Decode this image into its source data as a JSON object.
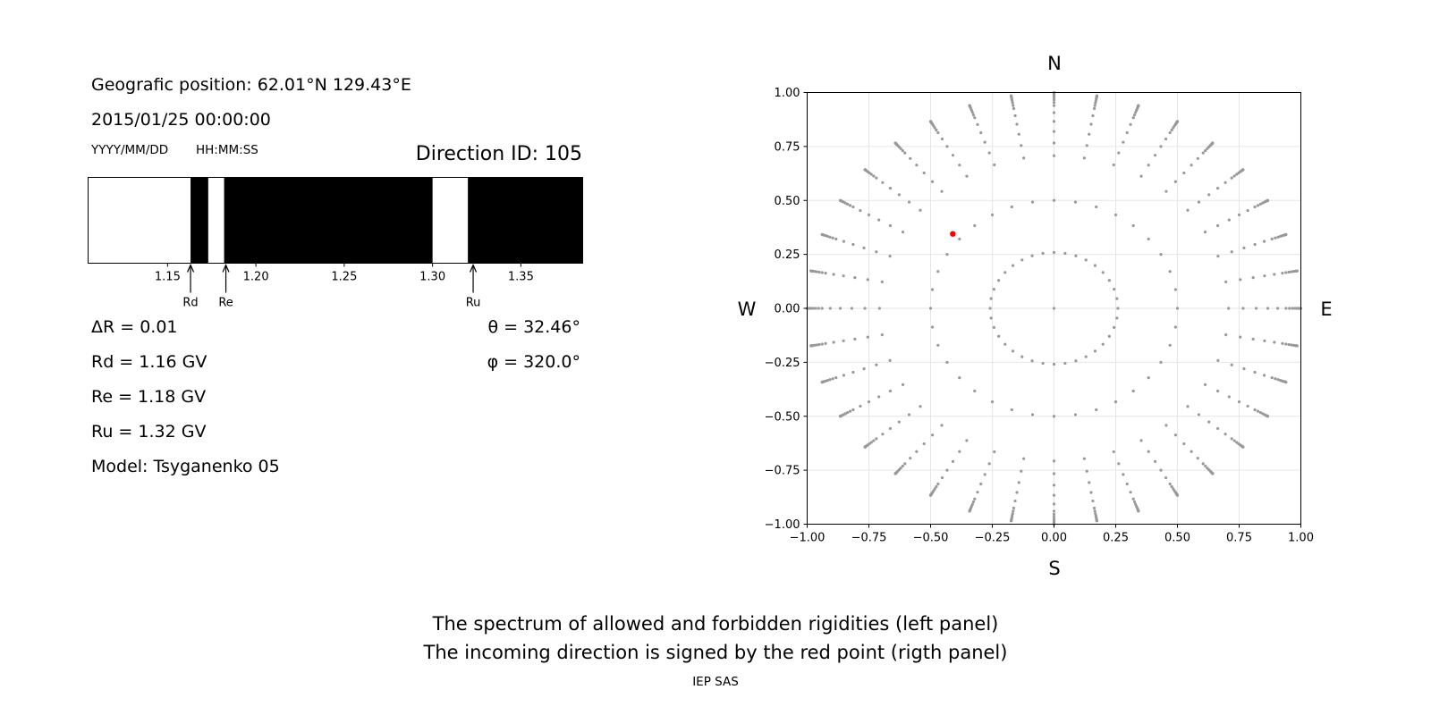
{
  "left_panel": {
    "position_line": "Geografic position: 62.01°N 129.43°E",
    "datetime_line": "2015/01/25 00:00:00",
    "date_format_hint": "YYYY/MM/DD",
    "time_format_hint": "HH:MM:SS",
    "direction_id": "Direction ID: 105",
    "delta_r": "ΔR = 0.01",
    "rd_line": "Rd = 1.16 GV",
    "re_line": "Re = 1.18 GV",
    "ru_line": "Ru = 1.32 GV",
    "model_line": "Model: Tsyganenko 05",
    "theta_line": "θ = 32.46°",
    "phi_line": "φ = 320.0°"
  },
  "compass": {
    "north": "N",
    "south": "S",
    "east": "E",
    "west": "W"
  },
  "footer": {
    "line1": "The spectrum of allowed and forbidden rigidities (left panel)",
    "line2": "The incoming direction is signed by the red point (rigth panel)",
    "credit": "IEP SAS"
  },
  "colors": {
    "forbidden": "#000000",
    "allowed": "#ffffff",
    "grid_point": "#999999",
    "direction_point": "#ff0000",
    "gridline": "#e6e6e6"
  },
  "chart_data": [
    {
      "type": "bar",
      "description_units": "GV",
      "xlim": [
        1.105,
        1.385
      ],
      "tick_values": [
        1.15,
        1.2,
        1.25,
        1.3,
        1.35
      ],
      "tick_labels": [
        "1.15",
        "1.20",
        "1.25",
        "1.30",
        "1.35"
      ],
      "allowed_intervals": [
        [
          1.105,
          1.163
        ],
        [
          1.173,
          1.182
        ],
        [
          1.3,
          1.32
        ]
      ],
      "forbidden_intervals": [
        [
          1.163,
          1.173
        ],
        [
          1.182,
          1.3
        ],
        [
          1.32,
          1.385
        ]
      ],
      "markers": [
        {
          "label": "Rd",
          "value": 1.163
        },
        {
          "label": "Re",
          "value": 1.183
        },
        {
          "label": "Ru",
          "value": 1.323
        }
      ]
    },
    {
      "type": "scatter",
      "xlim": [
        -1.0,
        1.0
      ],
      "ylim": [
        -1.0,
        1.0
      ],
      "grid": true,
      "x_tick_labels": [
        "−1.00",
        "−0.75",
        "−0.50",
        "−0.25",
        "0.00",
        "0.25",
        "0.50",
        "0.75",
        "1.00"
      ],
      "y_tick_labels": [
        "−1.00",
        "−0.75",
        "−0.50",
        "−0.25",
        "0.00",
        "0.25",
        "0.50",
        "0.75",
        "1.00"
      ],
      "tick_values": [
        -1.0,
        -0.75,
        -0.5,
        -0.25,
        0.0,
        0.25,
        0.5,
        0.75,
        1.0
      ],
      "direction_grid": {
        "theta_deg": [
          0,
          15,
          30,
          45,
          50,
          55,
          60,
          65,
          70,
          72.5,
          75,
          77.5,
          80,
          82.5,
          85,
          86,
          87,
          88,
          89,
          90
        ],
        "phi_step_deg": 10,
        "projection": "sin(theta)"
      },
      "highlight_point": {
        "x": -0.41,
        "y": 0.345,
        "theta_deg": 32.46,
        "phi_deg": 320.0
      }
    }
  ]
}
